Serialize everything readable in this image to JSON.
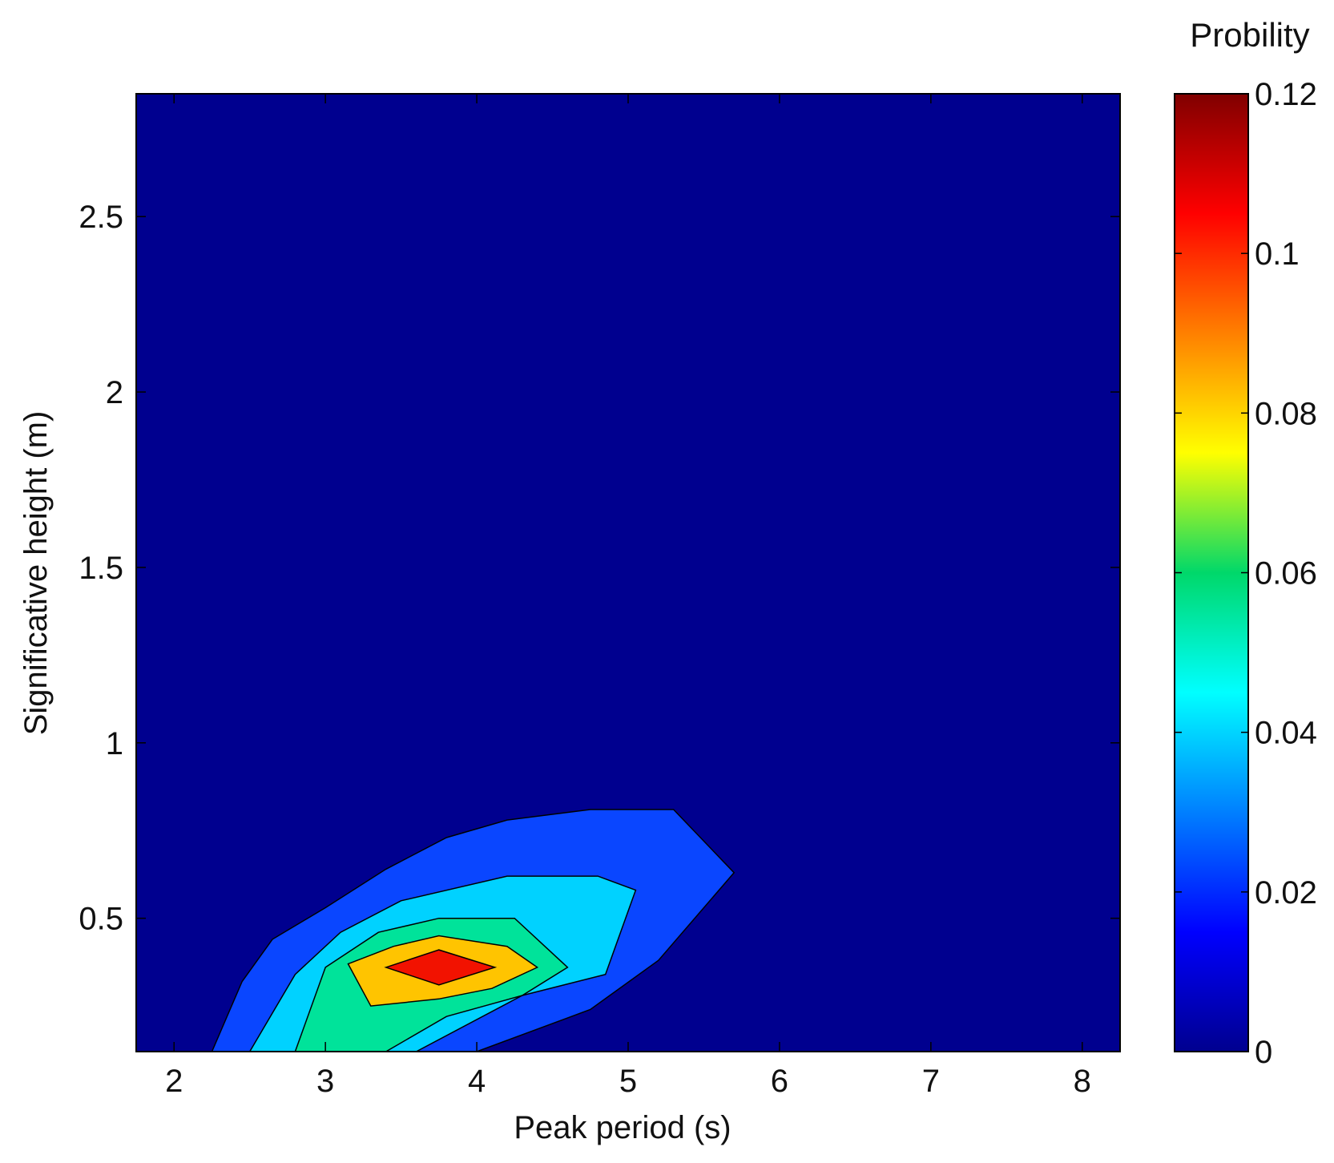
{
  "chart_data": {
    "type": "contourf",
    "xlabel": "Peak period (s)",
    "ylabel": "Significative height (m)",
    "xlim": [
      1.75,
      8.25
    ],
    "ylim": [
      0.12,
      2.85
    ],
    "xticks": [
      2,
      3,
      4,
      5,
      6,
      7,
      8
    ],
    "yticks": [
      0.5,
      1,
      1.5,
      2,
      2.5
    ],
    "colorbar": {
      "title": "Probility",
      "range": [
        0,
        0.12
      ],
      "ticks": [
        0,
        0.02,
        0.04,
        0.06,
        0.08,
        0.1,
        0.12
      ],
      "tick_labels": [
        "0",
        "0.02",
        "0.04",
        "0.06",
        "0.08",
        "0.1",
        "0.12"
      ],
      "colormap": "jet"
    },
    "background_fill": "#00008f",
    "contour_levels": [
      {
        "level": 0.02,
        "color": "#0a46ff",
        "polygon": [
          [
            2.25,
            0.12
          ],
          [
            2.45,
            0.32
          ],
          [
            2.65,
            0.44
          ],
          [
            3.0,
            0.53
          ],
          [
            3.4,
            0.64
          ],
          [
            3.8,
            0.73
          ],
          [
            4.2,
            0.78
          ],
          [
            4.75,
            0.81
          ],
          [
            5.3,
            0.81
          ],
          [
            5.7,
            0.63
          ],
          [
            5.2,
            0.38
          ],
          [
            4.75,
            0.24
          ],
          [
            4.0,
            0.12
          ]
        ]
      },
      {
        "level": 0.04,
        "color": "#00d2ff",
        "polygon": [
          [
            2.5,
            0.12
          ],
          [
            2.8,
            0.34
          ],
          [
            3.1,
            0.46
          ],
          [
            3.5,
            0.55
          ],
          [
            4.2,
            0.62
          ],
          [
            4.8,
            0.62
          ],
          [
            5.05,
            0.58
          ],
          [
            4.85,
            0.34
          ],
          [
            4.3,
            0.28
          ],
          [
            3.6,
            0.12
          ]
        ]
      },
      {
        "level": 0.06,
        "color": "#00e39a",
        "polygon": [
          [
            2.8,
            0.12
          ],
          [
            3.0,
            0.36
          ],
          [
            3.35,
            0.46
          ],
          [
            3.75,
            0.5
          ],
          [
            4.25,
            0.5
          ],
          [
            4.6,
            0.36
          ],
          [
            4.3,
            0.28
          ],
          [
            3.8,
            0.22
          ],
          [
            3.4,
            0.12
          ]
        ]
      },
      {
        "level": 0.08,
        "color": "#ffc400",
        "polygon": [
          [
            3.15,
            0.37
          ],
          [
            3.45,
            0.42
          ],
          [
            3.75,
            0.45
          ],
          [
            4.2,
            0.42
          ],
          [
            4.4,
            0.36
          ],
          [
            4.1,
            0.3
          ],
          [
            3.75,
            0.27
          ],
          [
            3.3,
            0.25
          ]
        ]
      },
      {
        "level": 0.1,
        "color": "#f21200",
        "polygon": [
          [
            3.4,
            0.36
          ],
          [
            3.75,
            0.41
          ],
          [
            4.12,
            0.36
          ],
          [
            3.75,
            0.31
          ]
        ]
      }
    ]
  }
}
